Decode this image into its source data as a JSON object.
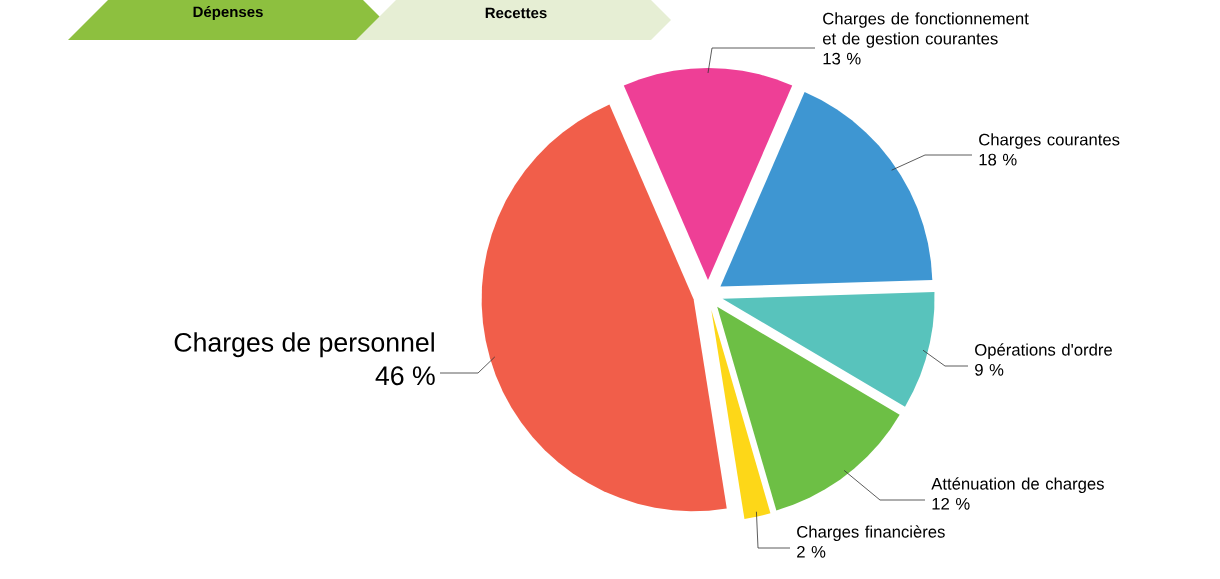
{
  "chart_data": {
    "type": "pie",
    "annotations": [
      "Dépenses",
      "Recettes"
    ],
    "categories": [
      "Charges de fonctionnement et de gestion courantes",
      "Charges courantes",
      "Opérations d'ordre",
      "Atténuation de charges",
      "Charges financières",
      "Charges de personnel"
    ],
    "values": [
      13,
      18,
      9,
      12,
      2,
      46
    ],
    "value_labels": [
      "13 %",
      "18 %",
      "9 %",
      "12 %",
      "2 %",
      "46 %"
    ],
    "colors": [
      "#ee3f96",
      "#3e96d2",
      "#58c3bc",
      "#6dbf45",
      "#fdd718",
      "#f15e4a"
    ]
  }
}
